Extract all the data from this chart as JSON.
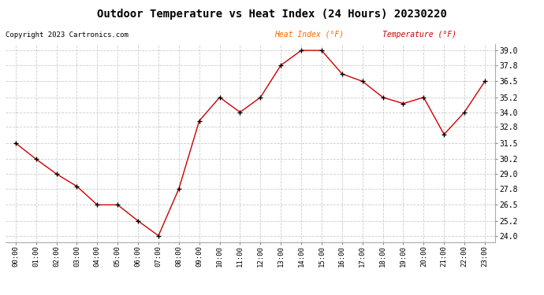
{
  "title": "Outdoor Temperature vs Heat Index (24 Hours) 20230220",
  "copyright": "Copyright 2023 Cartronics.com",
  "legend_heat_index": "Heat Index (°F)",
  "legend_temperature": "Temperature (°F)",
  "x_labels": [
    "00:00",
    "01:00",
    "02:00",
    "03:00",
    "04:00",
    "05:00",
    "06:00",
    "07:00",
    "08:00",
    "09:00",
    "10:00",
    "11:00",
    "12:00",
    "13:00",
    "14:00",
    "15:00",
    "16:00",
    "17:00",
    "18:00",
    "19:00",
    "20:00",
    "21:00",
    "22:00",
    "23:00"
  ],
  "temperature": [
    31.5,
    30.2,
    29.0,
    28.0,
    26.5,
    26.5,
    25.2,
    24.0,
    27.8,
    33.3,
    35.2,
    34.0,
    35.2,
    37.8,
    39.0,
    39.0,
    37.1,
    36.5,
    35.2,
    34.7,
    35.2,
    32.2,
    34.0,
    36.5
  ],
  "line_color": "#cc0000",
  "marker_color": "#000000",
  "background_color": "#ffffff",
  "grid_color": "#cccccc",
  "title_color": "#000000",
  "copyright_color": "#000000",
  "legend_heat_index_color": "#ff6600",
  "legend_temperature_color": "#cc0000",
  "ylim": [
    23.5,
    39.5
  ],
  "yticks": [
    24.0,
    25.2,
    26.5,
    27.8,
    29.0,
    30.2,
    31.5,
    32.8,
    34.0,
    35.2,
    36.5,
    37.8,
    39.0
  ]
}
